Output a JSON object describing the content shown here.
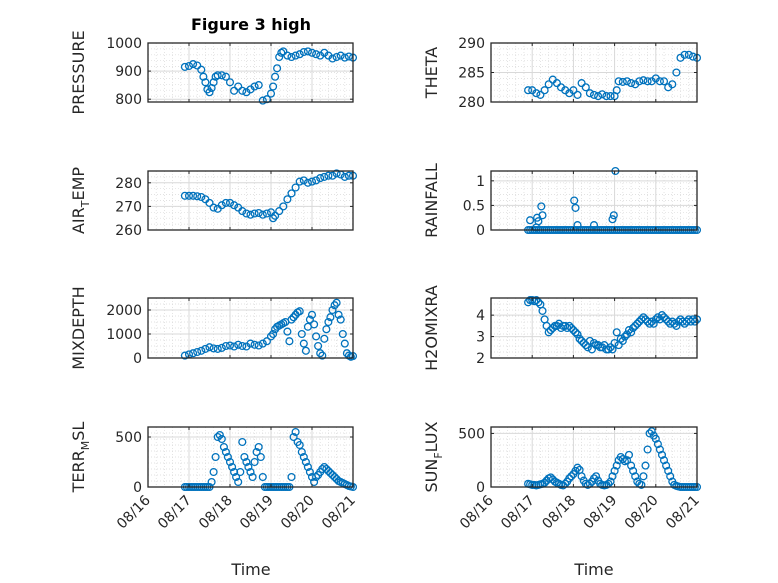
{
  "figure": {
    "title": "Figure 3 high"
  },
  "colors": {
    "marker": "#0072BD",
    "grid": "#d9d9d9",
    "axis": "#262626"
  },
  "chart_data": [
    {
      "id": "pressure",
      "type": "scatter",
      "title": "Figure 3 high",
      "ylabel": "PRESSURE",
      "ylim": [
        790,
        1000
      ],
      "yticks": [
        {
          "v": 800,
          "label": "800"
        },
        {
          "v": 900,
          "label": "900"
        },
        {
          "v": 1000,
          "label": "1000"
        }
      ],
      "x": [
        16.9,
        17.0,
        17.1,
        17.2,
        17.3,
        17.35,
        17.4,
        17.45,
        17.5,
        17.55,
        17.6,
        17.65,
        17.7,
        17.8,
        17.9,
        18.0,
        18.1,
        18.2,
        18.3,
        18.4,
        18.5,
        18.6,
        18.7,
        18.8,
        18.9,
        19.0,
        19.05,
        19.1,
        19.15,
        19.2,
        19.25,
        19.3,
        19.4,
        19.5,
        19.6,
        19.7,
        19.8,
        19.9,
        20.0,
        20.1,
        20.2,
        20.3,
        20.4,
        20.5,
        20.6,
        20.7,
        20.8,
        20.9,
        21.0
      ],
      "y": [
        915,
        918,
        925,
        920,
        905,
        880,
        860,
        835,
        825,
        840,
        860,
        880,
        885,
        885,
        880,
        860,
        830,
        845,
        830,
        825,
        835,
        845,
        850,
        795,
        800,
        820,
        845,
        880,
        910,
        950,
        965,
        970,
        955,
        950,
        955,
        960,
        968,
        970,
        965,
        960,
        955,
        965,
        955,
        945,
        950,
        955,
        948,
        952,
        948
      ]
    },
    {
      "id": "theta",
      "type": "scatter",
      "ylabel": "THETA",
      "ylim": [
        280,
        290
      ],
      "yticks": [
        {
          "v": 280,
          "label": "280"
        },
        {
          "v": 285,
          "label": "285"
        },
        {
          "v": 290,
          "label": "290"
        }
      ],
      "x": [
        16.9,
        17.0,
        17.1,
        17.2,
        17.3,
        17.4,
        17.5,
        17.6,
        17.7,
        17.8,
        17.9,
        18.0,
        18.1,
        18.2,
        18.3,
        18.4,
        18.5,
        18.6,
        18.7,
        18.8,
        18.9,
        19.0,
        19.05,
        19.1,
        19.2,
        19.3,
        19.4,
        19.5,
        19.6,
        19.7,
        19.8,
        19.9,
        20.0,
        20.1,
        20.2,
        20.3,
        20.4,
        20.5,
        20.6,
        20.7,
        20.8,
        20.9,
        21.0
      ],
      "y": [
        282,
        282,
        281.5,
        281.2,
        282,
        283,
        283.8,
        283.2,
        282.5,
        282,
        281.5,
        282,
        281.2,
        283.2,
        282.5,
        281.5,
        281.2,
        281,
        281.3,
        281,
        281,
        281,
        282,
        283.5,
        283.4,
        283.5,
        283.2,
        283,
        283.5,
        283.7,
        283.5,
        283.5,
        284,
        283.5,
        283.5,
        282.5,
        283,
        285,
        287.5,
        288,
        288,
        287.7,
        287.5
      ]
    },
    {
      "id": "air_temp",
      "type": "scatter",
      "ylabel": "AIR_TEMP",
      "ylim": [
        260,
        285
      ],
      "yticks": [
        {
          "v": 260,
          "label": "260"
        },
        {
          "v": 270,
          "label": "270"
        },
        {
          "v": 280,
          "label": "280"
        }
      ],
      "x": [
        16.9,
        17.0,
        17.1,
        17.2,
        17.3,
        17.4,
        17.5,
        17.6,
        17.7,
        17.8,
        17.9,
        18.0,
        18.1,
        18.2,
        18.3,
        18.4,
        18.5,
        18.6,
        18.7,
        18.8,
        18.9,
        19.0,
        19.05,
        19.1,
        19.2,
        19.3,
        19.4,
        19.5,
        19.6,
        19.7,
        19.8,
        19.9,
        20.0,
        20.1,
        20.2,
        20.3,
        20.4,
        20.5,
        20.6,
        20.7,
        20.8,
        20.9,
        21.0
      ],
      "y": [
        274.5,
        274.5,
        274.5,
        274.3,
        274,
        273,
        271.5,
        269.5,
        269,
        270.5,
        271.5,
        271.5,
        270.5,
        269.5,
        268,
        267,
        266.5,
        267,
        267.2,
        266.5,
        267,
        267.5,
        265,
        266,
        268,
        270,
        273,
        275.5,
        278,
        280.5,
        281,
        280,
        280.5,
        281,
        282,
        282.5,
        283,
        283,
        284,
        283.5,
        282.5,
        283,
        283
      ]
    },
    {
      "id": "rainfall",
      "type": "scatter",
      "ylabel": "RAINFALL",
      "ylim": [
        0,
        1.2
      ],
      "yticks": [
        {
          "v": 0,
          "label": "0"
        },
        {
          "v": 0.5,
          "label": "0.5"
        },
        {
          "v": 1,
          "label": "1"
        }
      ],
      "x": [
        16.9,
        16.95,
        17.0,
        17.05,
        17.1,
        17.15,
        17.2,
        17.25,
        17.3,
        17.35,
        17.4,
        17.45,
        17.5,
        17.55,
        17.6,
        17.65,
        17.7,
        17.75,
        17.8,
        17.85,
        17.9,
        17.95,
        18.0,
        18.05,
        18.1,
        18.15,
        18.2,
        18.25,
        18.3,
        18.35,
        18.4,
        18.45,
        18.5,
        18.55,
        18.6,
        18.65,
        18.7,
        18.75,
        18.8,
        18.85,
        18.9,
        18.95,
        19.0,
        19.05,
        19.1,
        19.15,
        19.2,
        19.25,
        19.3,
        19.35,
        19.4,
        19.45,
        19.5,
        19.55,
        19.6,
        19.65,
        19.7,
        19.75,
        19.8,
        19.85,
        19.9,
        19.95,
        20.0,
        20.05,
        20.1,
        20.15,
        20.2,
        20.25,
        20.3,
        20.35,
        20.4,
        20.45,
        20.5,
        20.55,
        20.6,
        20.65,
        20.7,
        20.75,
        20.8,
        20.85,
        20.9,
        20.95,
        21.0,
        16.95,
        17.1,
        17.12,
        17.15,
        17.22,
        17.25,
        18.02,
        18.05,
        18.1,
        18.5,
        18.95,
        18.98,
        19.02
      ],
      "y": [
        0,
        0.2,
        0,
        0,
        0,
        0,
        0,
        0,
        0,
        0,
        0,
        0,
        0,
        0,
        0,
        0,
        0,
        0,
        0,
        0,
        0,
        0,
        0,
        0,
        0,
        0,
        0,
        0,
        0,
        0,
        0,
        0,
        0,
        0,
        0,
        0,
        0,
        0,
        0,
        0,
        0,
        0,
        0,
        0,
        0,
        0,
        0,
        0,
        0,
        0,
        0,
        0,
        0,
        0,
        0,
        0,
        0,
        0,
        0,
        0,
        0,
        0,
        0,
        0,
        0,
        0,
        0,
        0,
        0,
        0,
        0,
        0,
        0,
        0,
        0,
        0,
        0,
        0,
        0,
        0,
        0,
        0,
        0,
        0,
        0.05,
        0.25,
        0.18,
        0.48,
        0.3,
        0.6,
        0.45,
        0.1,
        0.1,
        0.22,
        0.3,
        1.2
      ]
    },
    {
      "id": "mixdepth",
      "type": "scatter",
      "ylabel": "MIXDEPTH",
      "ylim": [
        0,
        2500
      ],
      "yticks": [
        {
          "v": 0,
          "label": "0"
        },
        {
          "v": 1000,
          "label": "1000"
        },
        {
          "v": 2000,
          "label": "2000"
        }
      ],
      "x": [
        16.9,
        17.0,
        17.1,
        17.2,
        17.3,
        17.4,
        17.5,
        17.6,
        17.7,
        17.8,
        17.9,
        18.0,
        18.1,
        18.2,
        18.3,
        18.4,
        18.5,
        18.6,
        18.7,
        18.8,
        18.9,
        19.0,
        19.05,
        19.1,
        19.15,
        19.2,
        19.25,
        19.3,
        19.35,
        19.4,
        19.45,
        19.5,
        19.55,
        19.6,
        19.65,
        19.7,
        19.75,
        19.8,
        19.85,
        19.9,
        19.95,
        20.0,
        20.05,
        20.1,
        20.15,
        20.2,
        20.25,
        20.3,
        20.35,
        20.4,
        20.45,
        20.5,
        20.55,
        20.6,
        20.65,
        20.7,
        20.75,
        20.8,
        20.85,
        20.9,
        20.95,
        21.0
      ],
      "y": [
        100,
        150,
        200,
        250,
        300,
        380,
        450,
        400,
        380,
        420,
        500,
        520,
        480,
        550,
        500,
        480,
        600,
        550,
        520,
        600,
        700,
        900,
        1000,
        1200,
        1300,
        1350,
        1400,
        1450,
        1500,
        1100,
        700,
        1600,
        1700,
        1800,
        1900,
        1950,
        1000,
        600,
        300,
        1300,
        1600,
        1800,
        1400,
        900,
        500,
        200,
        100,
        800,
        1200,
        1500,
        1700,
        2000,
        2200,
        2300,
        1800,
        1600,
        1000,
        600,
        200,
        100,
        50,
        80
      ]
    },
    {
      "id": "h2omixra",
      "type": "scatter",
      "ylabel": "H2OMIXRA",
      "ylim": [
        2,
        4.8
      ],
      "yticks": [
        {
          "v": 2,
          "label": "2"
        },
        {
          "v": 3,
          "label": "3"
        },
        {
          "v": 4,
          "label": "4"
        }
      ],
      "x": [
        16.9,
        16.95,
        17.0,
        17.05,
        17.1,
        17.15,
        17.2,
        17.25,
        17.3,
        17.35,
        17.4,
        17.45,
        17.5,
        17.55,
        17.6,
        17.65,
        17.7,
        17.75,
        17.8,
        17.85,
        17.9,
        17.95,
        18.0,
        18.05,
        18.1,
        18.15,
        18.2,
        18.25,
        18.3,
        18.35,
        18.4,
        18.45,
        18.5,
        18.55,
        18.6,
        18.65,
        18.7,
        18.75,
        18.8,
        18.85,
        18.9,
        18.95,
        19.0,
        19.05,
        19.1,
        19.15,
        19.2,
        19.25,
        19.3,
        19.35,
        19.4,
        19.45,
        19.5,
        19.55,
        19.6,
        19.65,
        19.7,
        19.75,
        19.8,
        19.85,
        19.9,
        19.95,
        20.0,
        20.05,
        20.1,
        20.15,
        20.2,
        20.25,
        20.3,
        20.35,
        20.4,
        20.45,
        20.5,
        20.55,
        20.6,
        20.65,
        20.7,
        20.75,
        20.8,
        20.85,
        20.9,
        20.95,
        21.0
      ],
      "y": [
        4.6,
        4.7,
        4.7,
        4.65,
        4.7,
        4.6,
        4.5,
        4.2,
        3.8,
        3.5,
        3.2,
        3.3,
        3.4,
        3.5,
        3.5,
        3.6,
        3.4,
        3.5,
        3.5,
        3.4,
        3.5,
        3.4,
        3.3,
        3.2,
        3.1,
        2.9,
        2.8,
        2.7,
        2.6,
        2.5,
        2.8,
        2.4,
        2.7,
        2.6,
        2.6,
        2.5,
        2.5,
        2.6,
        2.4,
        2.4,
        2.5,
        2.4,
        2.7,
        3.2,
        2.6,
        2.9,
        2.8,
        3.0,
        3.1,
        3.3,
        3.2,
        3.4,
        3.5,
        3.6,
        3.7,
        3.8,
        3.9,
        3.8,
        3.7,
        3.6,
        3.7,
        3.6,
        3.8,
        3.9,
        3.8,
        4.0,
        3.9,
        3.8,
        3.7,
        3.6,
        3.7,
        3.6,
        3.5,
        3.7,
        3.8,
        3.7,
        3.6,
        3.7,
        3.8,
        3.7,
        3.8,
        3.7,
        3.8
      ]
    },
    {
      "id": "terr_msl",
      "type": "scatter",
      "ylabel": "TERR_MSL",
      "ylim": [
        0,
        600
      ],
      "yticks": [
        {
          "v": 0,
          "label": "0"
        },
        {
          "v": 500,
          "label": "500"
        }
      ],
      "x": [
        16.9,
        16.95,
        17.0,
        17.05,
        17.1,
        17.15,
        17.2,
        17.25,
        17.3,
        17.35,
        17.4,
        17.45,
        17.5,
        17.55,
        17.6,
        17.65,
        17.7,
        17.75,
        17.8,
        17.85,
        17.9,
        17.95,
        18.0,
        18.05,
        18.1,
        18.15,
        18.2,
        18.25,
        18.3,
        18.35,
        18.4,
        18.45,
        18.5,
        18.55,
        18.6,
        18.65,
        18.7,
        18.75,
        18.8,
        18.85,
        18.9,
        18.95,
        19.0,
        19.05,
        19.1,
        19.15,
        19.2,
        19.25,
        19.3,
        19.35,
        19.4,
        19.45,
        19.5,
        19.55,
        19.6,
        19.65,
        19.7,
        19.75,
        19.8,
        19.85,
        19.9,
        19.95,
        20.0,
        20.05,
        20.1,
        20.15,
        20.2,
        20.25,
        20.3,
        20.35,
        20.4,
        20.45,
        20.5,
        20.55,
        20.6,
        20.65,
        20.7,
        20.75,
        20.8,
        20.85,
        20.9,
        20.95,
        21.0
      ],
      "y": [
        0,
        0,
        0,
        0,
        0,
        0,
        0,
        0,
        0,
        0,
        0,
        0,
        0,
        50,
        150,
        300,
        500,
        520,
        480,
        400,
        350,
        300,
        250,
        200,
        150,
        100,
        50,
        150,
        450,
        300,
        250,
        200,
        150,
        100,
        250,
        350,
        400,
        300,
        100,
        0,
        0,
        0,
        0,
        0,
        0,
        0,
        0,
        0,
        0,
        0,
        0,
        0,
        100,
        500,
        550,
        450,
        420,
        350,
        300,
        250,
        200,
        150,
        100,
        50,
        100,
        120,
        150,
        180,
        200,
        180,
        160,
        140,
        120,
        100,
        80,
        60,
        50,
        40,
        30,
        20,
        10,
        5,
        0
      ]
    },
    {
      "id": "sun_flux",
      "type": "scatter",
      "ylabel": "SUN_FLUX",
      "ylim": [
        0,
        560
      ],
      "yticks": [
        {
          "v": 0,
          "label": "0"
        },
        {
          "v": 500,
          "label": "500"
        }
      ],
      "x": [
        16.9,
        16.95,
        17.0,
        17.05,
        17.1,
        17.15,
        17.2,
        17.25,
        17.3,
        17.35,
        17.4,
        17.45,
        17.5,
        17.55,
        17.6,
        17.65,
        17.7,
        17.75,
        17.8,
        17.85,
        17.9,
        17.95,
        18.0,
        18.05,
        18.1,
        18.15,
        18.2,
        18.25,
        18.3,
        18.35,
        18.4,
        18.45,
        18.5,
        18.55,
        18.6,
        18.65,
        18.7,
        18.75,
        18.8,
        18.85,
        18.9,
        18.95,
        19.0,
        19.05,
        19.1,
        19.15,
        19.2,
        19.25,
        19.3,
        19.35,
        19.4,
        19.45,
        19.5,
        19.55,
        19.6,
        19.65,
        19.7,
        19.75,
        19.8,
        19.85,
        19.9,
        19.95,
        20.0,
        20.05,
        20.1,
        20.15,
        20.2,
        20.25,
        20.3,
        20.35,
        20.4,
        20.45,
        20.5,
        20.55,
        20.6,
        20.65,
        20.7,
        20.75,
        20.8,
        20.85,
        20.9,
        20.95,
        21.0
      ],
      "y": [
        30,
        25,
        20,
        20,
        15,
        20,
        25,
        30,
        40,
        60,
        80,
        90,
        70,
        50,
        40,
        30,
        20,
        15,
        30,
        50,
        80,
        100,
        120,
        150,
        180,
        160,
        100,
        60,
        30,
        20,
        30,
        50,
        80,
        100,
        60,
        30,
        20,
        15,
        20,
        30,
        50,
        100,
        150,
        200,
        250,
        280,
        260,
        240,
        250,
        300,
        200,
        150,
        100,
        50,
        30,
        20,
        100,
        200,
        350,
        500,
        520,
        480,
        450,
        400,
        350,
        300,
        250,
        200,
        150,
        100,
        50,
        20,
        10,
        5,
        0,
        0,
        0,
        0,
        0,
        0,
        0,
        0,
        0
      ]
    }
  ],
  "xaxis": {
    "ticks": [
      {
        "v": 16,
        "label": "08/16"
      },
      {
        "v": 17,
        "label": "08/17"
      },
      {
        "v": 18,
        "label": "08/18"
      },
      {
        "v": 19,
        "label": "08/19"
      },
      {
        "v": 20,
        "label": "08/20"
      },
      {
        "v": 21,
        "label": "08/21"
      }
    ],
    "label": "Time"
  }
}
